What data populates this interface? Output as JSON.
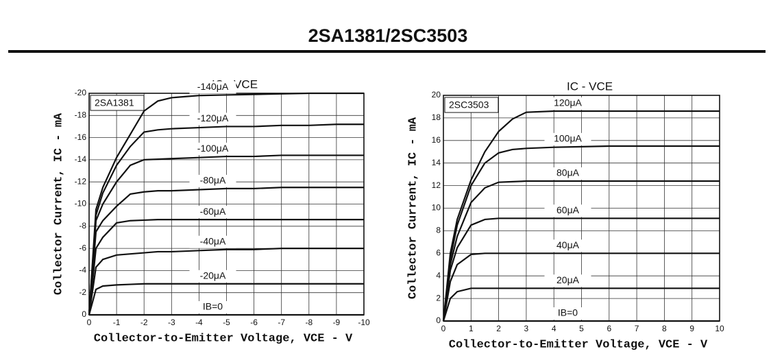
{
  "header": {
    "title": "2SA1381/2SC3503"
  },
  "chart_data": [
    {
      "type": "line",
      "title": "IC - VCE",
      "panel_label": "2SA1381",
      "x_label": "Collector-to-Emitter Voltage, VCE - V",
      "y_label": "Collector Current, IC - mA",
      "xlim": [
        0,
        -10
      ],
      "ylim": [
        0,
        -20
      ],
      "xticks": [
        0,
        -1,
        -2,
        -3,
        -4,
        -5,
        -6,
        -7,
        -8,
        -9,
        -10
      ],
      "yticks": [
        0,
        -2,
        -4,
        -6,
        -8,
        -10,
        -12,
        -14,
        -16,
        -18,
        -20
      ],
      "grid": true,
      "x": [
        0,
        -0.25,
        -0.5,
        -1,
        -1.5,
        -2,
        -2.5,
        -3,
        -4,
        -5,
        -6,
        -7,
        -8,
        -9,
        -10
      ],
      "series": [
        {
          "name": "-140μA",
          "color": "#111111",
          "values": [
            0,
            -9.5,
            -11.5,
            -14.2,
            -16.3,
            -18.4,
            -19.3,
            -19.6,
            -19.8,
            -19.85,
            -19.9,
            -19.95,
            -20,
            -20,
            -20
          ]
        },
        {
          "name": "-120μA",
          "color": "#111111",
          "values": [
            0,
            -9,
            -11,
            -13.5,
            -15.2,
            -16.5,
            -16.7,
            -16.8,
            -16.9,
            -17,
            -17,
            -17.1,
            -17.1,
            -17.2,
            -17.2
          ]
        },
        {
          "name": "-100μA",
          "color": "#111111",
          "values": [
            0,
            -8.5,
            -10,
            -12,
            -13.5,
            -14,
            -14.05,
            -14.1,
            -14.2,
            -14.3,
            -14.3,
            -14.4,
            -14.4,
            -14.4,
            -14.4
          ]
        },
        {
          "name": "-80μA",
          "color": "#111111",
          "values": [
            0,
            -7.5,
            -8.5,
            -9.8,
            -10.9,
            -11.1,
            -11.2,
            -11.2,
            -11.3,
            -11.4,
            -11.4,
            -11.5,
            -11.5,
            -11.5,
            -11.5
          ]
        },
        {
          "name": "-60μA",
          "color": "#111111",
          "values": [
            0,
            -6,
            -7,
            -8.3,
            -8.5,
            -8.55,
            -8.6,
            -8.6,
            -8.6,
            -8.6,
            -8.6,
            -8.6,
            -8.6,
            -8.6,
            -8.6
          ]
        },
        {
          "name": "-40μA",
          "color": "#111111",
          "values": [
            0,
            -4.3,
            -5,
            -5.4,
            -5.5,
            -5.6,
            -5.7,
            -5.7,
            -5.8,
            -5.9,
            -5.9,
            -6,
            -6,
            -6,
            -6
          ]
        },
        {
          "name": "-20μA",
          "color": "#111111",
          "values": [
            0,
            -2.3,
            -2.6,
            -2.7,
            -2.75,
            -2.8,
            -2.8,
            -2.8,
            -2.8,
            -2.8,
            -2.8,
            -2.8,
            -2.8,
            -2.8,
            -2.8
          ]
        },
        {
          "name": "IB=0",
          "color": "#111111",
          "values": [
            0,
            0,
            0,
            0,
            0,
            0,
            0,
            0,
            0,
            0,
            0,
            0,
            0,
            0,
            0
          ]
        }
      ]
    },
    {
      "type": "line",
      "title": "IC - VCE",
      "panel_label": "2SC3503",
      "x_label": "Collector-to-Emitter Voltage, VCE - V",
      "y_label": "Collector Current, IC - mA",
      "xlim": [
        0,
        10
      ],
      "ylim": [
        0,
        20
      ],
      "xticks": [
        0,
        1,
        2,
        3,
        4,
        5,
        6,
        7,
        8,
        9,
        10
      ],
      "yticks": [
        0,
        2,
        4,
        6,
        8,
        10,
        12,
        14,
        16,
        18,
        20
      ],
      "grid": true,
      "x": [
        0,
        0.25,
        0.5,
        1,
        1.5,
        2,
        2.5,
        3,
        4,
        5,
        6,
        7,
        8,
        9,
        10
      ],
      "series": [
        {
          "name": "120μA",
          "color": "#111111",
          "values": [
            0,
            6,
            9,
            12.5,
            15,
            16.8,
            17.9,
            18.5,
            18.6,
            18.6,
            18.6,
            18.6,
            18.6,
            18.6,
            18.6
          ]
        },
        {
          "name": "100μA",
          "color": "#111111",
          "values": [
            0,
            5.5,
            8.5,
            12,
            14,
            14.9,
            15.2,
            15.3,
            15.4,
            15.45,
            15.5,
            15.5,
            15.5,
            15.5,
            15.5
          ]
        },
        {
          "name": "80μA",
          "color": "#111111",
          "values": [
            0,
            5,
            7.5,
            10.5,
            11.8,
            12.3,
            12.35,
            12.4,
            12.4,
            12.4,
            12.4,
            12.4,
            12.4,
            12.4,
            12.4
          ]
        },
        {
          "name": "60μA",
          "color": "#111111",
          "values": [
            0,
            4.5,
            6.5,
            8.5,
            9,
            9.1,
            9.1,
            9.1,
            9.1,
            9.1,
            9.1,
            9.1,
            9.1,
            9.1,
            9.1
          ]
        },
        {
          "name": "40μA",
          "color": "#111111",
          "values": [
            0,
            3.5,
            5,
            5.9,
            6,
            6,
            6,
            6,
            6,
            6,
            6,
            6,
            6,
            6,
            6
          ]
        },
        {
          "name": "20μA",
          "color": "#111111",
          "values": [
            0,
            2,
            2.6,
            2.9,
            2.9,
            2.9,
            2.9,
            2.9,
            2.9,
            2.9,
            2.9,
            2.9,
            2.9,
            2.9,
            2.9
          ]
        },
        {
          "name": "IB=0",
          "color": "#111111",
          "values": [
            0,
            0,
            0,
            0,
            0,
            0,
            0,
            0,
            0,
            0,
            0,
            0,
            0,
            0,
            0
          ]
        }
      ]
    }
  ]
}
